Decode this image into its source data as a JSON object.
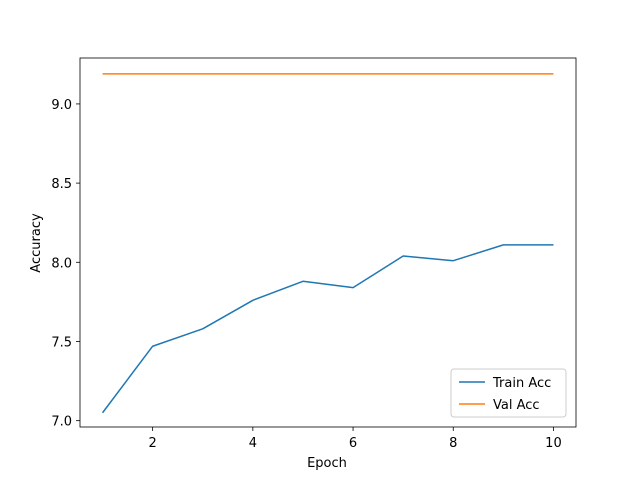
{
  "chart_data": {
    "type": "line",
    "title": "",
    "xlabel": "Epoch",
    "ylabel": "Accuracy",
    "x": [
      1,
      2,
      3,
      4,
      5,
      6,
      7,
      8,
      9,
      10
    ],
    "xlim": [
      0.55,
      10.45
    ],
    "ylim": [
      6.96,
      9.29
    ],
    "xticks": [
      2,
      4,
      6,
      8,
      10
    ],
    "xtick_labels": [
      "2",
      "4",
      "6",
      "8",
      "10"
    ],
    "yticks": [
      7.0,
      7.5,
      8.0,
      8.5,
      9.0
    ],
    "ytick_labels": [
      "7.0",
      "7.5",
      "8.0",
      "8.5",
      "9.0"
    ],
    "grid": false,
    "legend_position": "lower-right",
    "series": [
      {
        "name": "Train Acc",
        "color": "#1f77b4",
        "values": [
          7.05,
          7.47,
          7.58,
          7.76,
          7.88,
          7.84,
          8.04,
          8.01,
          8.11,
          8.11
        ]
      },
      {
        "name": "Val Acc",
        "color": "#ff7f0e",
        "values": [
          9.19,
          9.19,
          9.19,
          9.19,
          9.19,
          9.19,
          9.19,
          9.19,
          9.19,
          9.19
        ]
      }
    ]
  }
}
